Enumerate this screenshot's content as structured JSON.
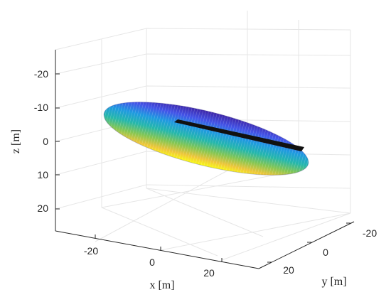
{
  "chart_data": {
    "type": "surface3d",
    "xlabel": "x [m]",
    "ylabel": "y [m]",
    "zlabel": "z [m]",
    "x_ticks": [
      -20,
      0,
      20
    ],
    "y_ticks": [
      -20,
      0,
      20
    ],
    "z_ticks": [
      -20,
      -10,
      0,
      10,
      20
    ],
    "z_reversed": true,
    "grid": true,
    "colormap": "parula",
    "surface": {
      "shape": "ellipsoid",
      "semi_axis_x": 30,
      "semi_axis_y": 5,
      "semi_axis_z": 5
    },
    "line": {
      "color": "#000000",
      "from": [
        -18,
        2,
        -3
      ],
      "to": [
        26,
        8,
        0
      ]
    }
  }
}
